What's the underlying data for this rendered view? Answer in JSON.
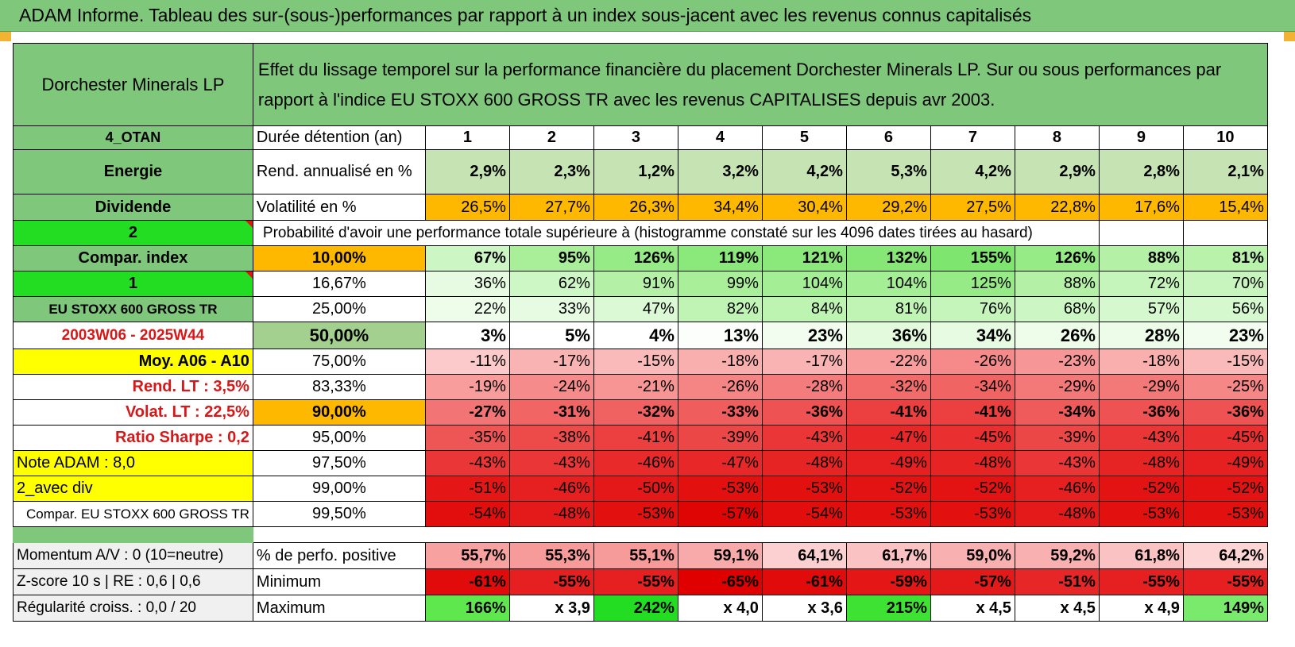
{
  "title": "ADAM Informe. Tableau des sur-(sous-)performances par rapport à un index sous-jacent avec les revenus connus capitalisés",
  "header": {
    "company": "Dorchester Minerals LP",
    "description": "Effet du lissage temporel sur la performance financière du placement Dorchester Minerals LP. Sur ou sous performances par rapport à l'indice EU STOXX 600 GROSS TR avec les revenus CAPITALISES depuis avr 2003."
  },
  "left_labels": {
    "code": "4_OTAN",
    "sector": "Energie",
    "type": "Dividende",
    "num2": "2",
    "compar_index": "Compar. index",
    "num1": "1",
    "index_name": "EU STOXX 600 GROSS TR",
    "period": "2003W06 - 2025W44",
    "moy": "Moy. A06 - A10",
    "rend_lt": "Rend. LT :    3,5%",
    "volat_lt": "Volat. LT :    22,5%",
    "sharpe": "Ratio Sharpe :     0,2",
    "note": "Note ADAM : 8,0",
    "avec_div": "2_avec div",
    "compar_eu": "Compar. EU STOXX 600 GROSS TR"
  },
  "duration": {
    "label": "Durée détention (an)",
    "years": [
      "1",
      "2",
      "3",
      "4",
      "5",
      "6",
      "7",
      "8",
      "9",
      "10"
    ]
  },
  "rend": {
    "label": "Rend. annualisé en %",
    "values": [
      "2,9%",
      "2,3%",
      "1,2%",
      "3,2%",
      "4,2%",
      "5,3%",
      "4,2%",
      "2,9%",
      "2,8%",
      "2,1%"
    ]
  },
  "volat": {
    "label": "Volatilité en %",
    "values": [
      "26,5%",
      "27,7%",
      "26,3%",
      "34,4%",
      "30,4%",
      "29,2%",
      "27,5%",
      "22,8%",
      "17,6%",
      "15,4%"
    ]
  },
  "prob_label": "Probabilité d'avoir une performance totale supérieure à (histogramme constaté sur les 4096 dates tirées au hasard)",
  "prob_rows": [
    {
      "pct": "10,00%",
      "values": [
        "67%",
        "95%",
        "126%",
        "119%",
        "121%",
        "132%",
        "155%",
        "126%",
        "88%",
        "81%"
      ]
    },
    {
      "pct": "16,67%",
      "values": [
        "36%",
        "62%",
        "91%",
        "99%",
        "104%",
        "104%",
        "125%",
        "88%",
        "72%",
        "70%"
      ]
    },
    {
      "pct": "25,00%",
      "values": [
        "22%",
        "33%",
        "47%",
        "82%",
        "84%",
        "81%",
        "76%",
        "68%",
        "57%",
        "56%"
      ]
    },
    {
      "pct": "50,00%",
      "values": [
        "3%",
        "5%",
        "4%",
        "13%",
        "23%",
        "36%",
        "34%",
        "26%",
        "28%",
        "23%"
      ]
    },
    {
      "pct": "75,00%",
      "values": [
        "-11%",
        "-17%",
        "-15%",
        "-18%",
        "-17%",
        "-22%",
        "-26%",
        "-23%",
        "-18%",
        "-15%"
      ]
    },
    {
      "pct": "83,33%",
      "values": [
        "-19%",
        "-24%",
        "-21%",
        "-26%",
        "-28%",
        "-32%",
        "-34%",
        "-29%",
        "-29%",
        "-25%"
      ]
    },
    {
      "pct": "90,00%",
      "values": [
        "-27%",
        "-31%",
        "-32%",
        "-33%",
        "-36%",
        "-41%",
        "-41%",
        "-34%",
        "-36%",
        "-36%"
      ]
    },
    {
      "pct": "95,00%",
      "values": [
        "-35%",
        "-38%",
        "-41%",
        "-39%",
        "-43%",
        "-47%",
        "-45%",
        "-39%",
        "-43%",
        "-45%"
      ]
    },
    {
      "pct": "97,50%",
      "values": [
        "-43%",
        "-43%",
        "-46%",
        "-47%",
        "-48%",
        "-49%",
        "-48%",
        "-43%",
        "-48%",
        "-49%"
      ]
    },
    {
      "pct": "99,00%",
      "values": [
        "-51%",
        "-46%",
        "-50%",
        "-53%",
        "-53%",
        "-52%",
        "-52%",
        "-46%",
        "-52%",
        "-52%"
      ]
    },
    {
      "pct": "99,50%",
      "values": [
        "-54%",
        "-48%",
        "-53%",
        "-57%",
        "-54%",
        "-53%",
        "-53%",
        "-48%",
        "-53%",
        "-53%"
      ]
    }
  ],
  "bottom": {
    "momentum": "Momentum A/V : 0 (10=neutre)",
    "zscore": "Z-score 10 s | RE : 0,6 | 0,6",
    "regularite": "Régularité croiss. : 0,0 / 20",
    "pos_label": "% de perfo. positive",
    "pos_values": [
      "55,7%",
      "55,3%",
      "55,1%",
      "59,1%",
      "64,1%",
      "61,7%",
      "59,0%",
      "59,2%",
      "61,8%",
      "64,2%"
    ],
    "min_label": "Minimum",
    "min_values": [
      "-61%",
      "-55%",
      "-55%",
      "-65%",
      "-61%",
      "-59%",
      "-57%",
      "-51%",
      "-55%",
      "-55%"
    ],
    "max_label": "Maximum",
    "max_values": [
      "166%",
      "x 3,9",
      "242%",
      "x 4,0",
      "x 3,6",
      "215%",
      "x 4,5",
      "x 4,5",
      "x 4,9",
      "149%"
    ]
  },
  "colors": {
    "header_green": "#7fc77a",
    "bright_green": "#22dd22",
    "yellow": "#ffff00",
    "orange": "#ffb800",
    "accent_red": "#d81818"
  }
}
